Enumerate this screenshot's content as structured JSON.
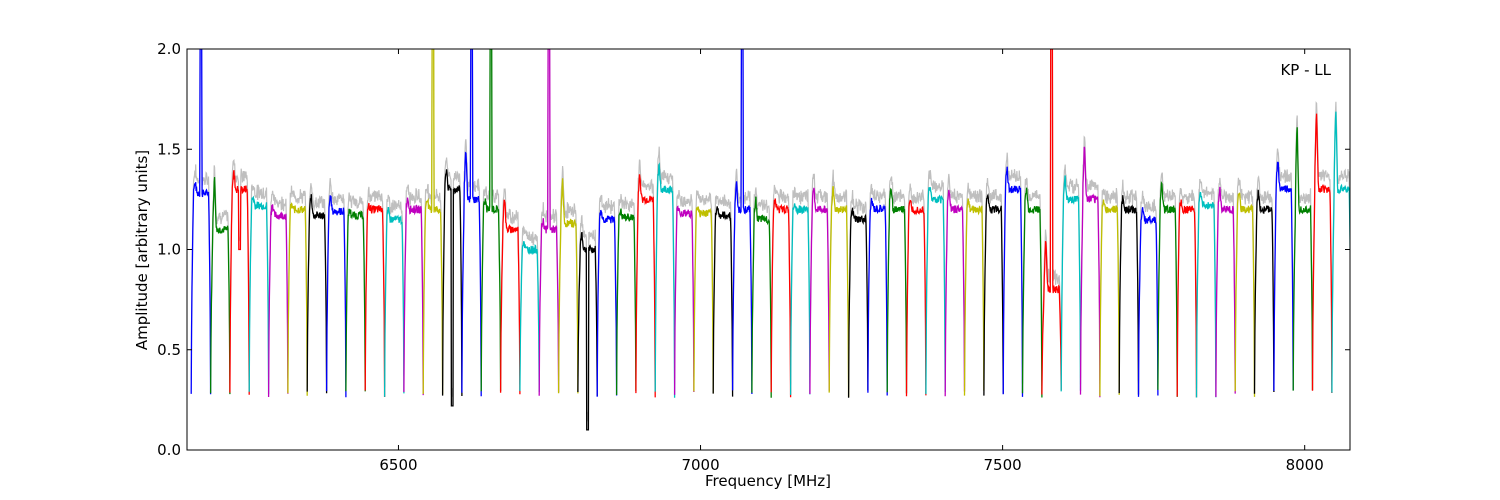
{
  "chart_data": {
    "type": "line",
    "title": "",
    "xlabel": "Frequency [MHz]",
    "ylabel": "Amplitude [arbitrary units]",
    "annotation": "KP - LL",
    "xlim": [
      6150,
      8075
    ],
    "ylim": [
      0.0,
      2.0
    ],
    "xticks": [
      6500,
      7000,
      7500,
      8000
    ],
    "xtick_labels": [
      "6500",
      "7000",
      "7500",
      "8000"
    ],
    "yticks": [
      0.0,
      0.5,
      1.0,
      1.5,
      2.0
    ],
    "ytick_labels": [
      "0.0",
      "0.5",
      "1.0",
      "1.5",
      "2.0"
    ],
    "grid": false,
    "legend": "none",
    "background_series": {
      "name": "",
      "color": "#bfbfbf"
    },
    "color_cycle": [
      "#0000ff",
      "#008000",
      "#ff0000",
      "#00bfbf",
      "#bf00bf",
      "#bfbf00",
      "#000000"
    ],
    "channel_width_mhz": 32,
    "channels": [
      {
        "x0": 6157,
        "level": 1.28,
        "edge": 1.34,
        "rfi": 2.0
      },
      {
        "x0": 6189,
        "level": 1.1,
        "edge": 1.4,
        "rfi": null
      },
      {
        "x0": 6221,
        "level": 1.3,
        "edge": 1.4,
        "rfi": 1.0
      },
      {
        "x0": 6253,
        "level": 1.22,
        "edge": 1.27,
        "rfi": null
      },
      {
        "x0": 6285,
        "level": 1.17,
        "edge": 1.24,
        "rfi": null
      },
      {
        "x0": 6317,
        "level": 1.2,
        "edge": 1.22,
        "rfi": null
      },
      {
        "x0": 6349,
        "level": 1.17,
        "edge": 1.29,
        "rfi": null
      },
      {
        "x0": 6381,
        "level": 1.19,
        "edge": 1.28,
        "rfi": null
      },
      {
        "x0": 6413,
        "level": 1.17,
        "edge": 1.2,
        "rfi": null
      },
      {
        "x0": 6445,
        "level": 1.2,
        "edge": 1.22,
        "rfi": null
      },
      {
        "x0": 6477,
        "level": 1.15,
        "edge": 1.2,
        "rfi": null
      },
      {
        "x0": 6509,
        "level": 1.2,
        "edge": 1.27,
        "rfi": null
      },
      {
        "x0": 6541,
        "level": 1.2,
        "edge": 1.27,
        "rfi": 2.0
      },
      {
        "x0": 6573,
        "level": 1.3,
        "edge": 1.42,
        "rfi": 0.22
      },
      {
        "x0": 6605,
        "level": 1.25,
        "edge": 1.53,
        "rfi": 2.0
      },
      {
        "x0": 6637,
        "level": 1.2,
        "edge": 1.25,
        "rfi": 2.0
      },
      {
        "x0": 6669,
        "level": 1.1,
        "edge": 1.29,
        "rfi": null
      },
      {
        "x0": 6701,
        "level": 1.0,
        "edge": 1.05,
        "rfi": null
      },
      {
        "x0": 6733,
        "level": 1.1,
        "edge": 1.15,
        "rfi": 2.0
      },
      {
        "x0": 6765,
        "level": 1.13,
        "edge": 1.38,
        "rfi": null
      },
      {
        "x0": 6797,
        "level": 1.0,
        "edge": 1.1,
        "rfi": 0.1
      },
      {
        "x0": 6829,
        "level": 1.15,
        "edge": 1.2,
        "rfi": null
      },
      {
        "x0": 6861,
        "level": 1.16,
        "edge": 1.2,
        "rfi": null
      },
      {
        "x0": 6893,
        "level": 1.25,
        "edge": 1.4,
        "rfi": null
      },
      {
        "x0": 6925,
        "level": 1.3,
        "edge": 1.43,
        "rfi": null
      },
      {
        "x0": 6957,
        "level": 1.18,
        "edge": 1.22,
        "rfi": null
      },
      {
        "x0": 6989,
        "level": 1.18,
        "edge": 1.22,
        "rfi": null
      },
      {
        "x0": 7021,
        "level": 1.17,
        "edge": 1.22,
        "rfi": null
      },
      {
        "x0": 7053,
        "level": 1.2,
        "edge": 1.35,
        "rfi": 2.0
      },
      {
        "x0": 7085,
        "level": 1.15,
        "edge": 1.27,
        "rfi": null
      },
      {
        "x0": 7117,
        "level": 1.2,
        "edge": 1.25,
        "rfi": null
      },
      {
        "x0": 7149,
        "level": 1.2,
        "edge": 1.24,
        "rfi": null
      },
      {
        "x0": 7181,
        "level": 1.2,
        "edge": 1.32,
        "rfi": null
      },
      {
        "x0": 7213,
        "level": 1.2,
        "edge": 1.32,
        "rfi": null
      },
      {
        "x0": 7245,
        "level": 1.15,
        "edge": 1.2,
        "rfi": null
      },
      {
        "x0": 7277,
        "level": 1.2,
        "edge": 1.25,
        "rfi": null
      },
      {
        "x0": 7309,
        "level": 1.2,
        "edge": 1.33,
        "rfi": null
      },
      {
        "x0": 7341,
        "level": 1.2,
        "edge": 1.24,
        "rfi": null
      },
      {
        "x0": 7373,
        "level": 1.25,
        "edge": 1.33,
        "rfi": null
      },
      {
        "x0": 7405,
        "level": 1.2,
        "edge": 1.32,
        "rfi": null
      },
      {
        "x0": 7437,
        "level": 1.2,
        "edge": 1.25,
        "rfi": null
      },
      {
        "x0": 7469,
        "level": 1.2,
        "edge": 1.3,
        "rfi": null
      },
      {
        "x0": 7501,
        "level": 1.3,
        "edge": 1.42,
        "rfi": null
      },
      {
        "x0": 7533,
        "level": 1.2,
        "edge": 1.32,
        "rfi": null
      },
      {
        "x0": 7565,
        "level": 0.8,
        "edge": 1.1,
        "rfi": 2.0
      },
      {
        "x0": 7597,
        "level": 1.25,
        "edge": 1.38,
        "rfi": null
      },
      {
        "x0": 7629,
        "level": 1.25,
        "edge": 1.56,
        "rfi": null
      },
      {
        "x0": 7661,
        "level": 1.2,
        "edge": 1.25,
        "rfi": null
      },
      {
        "x0": 7693,
        "level": 1.2,
        "edge": 1.27,
        "rfi": null
      },
      {
        "x0": 7725,
        "level": 1.15,
        "edge": 1.2,
        "rfi": null
      },
      {
        "x0": 7757,
        "level": 1.2,
        "edge": 1.35,
        "rfi": null
      },
      {
        "x0": 7789,
        "level": 1.2,
        "edge": 1.25,
        "rfi": null
      },
      {
        "x0": 7821,
        "level": 1.22,
        "edge": 1.3,
        "rfi": null
      },
      {
        "x0": 7853,
        "level": 1.2,
        "edge": 1.32,
        "rfi": null
      },
      {
        "x0": 7885,
        "level": 1.2,
        "edge": 1.3,
        "rfi": null
      },
      {
        "x0": 7917,
        "level": 1.2,
        "edge": 1.3,
        "rfi": null
      },
      {
        "x0": 7949,
        "level": 1.3,
        "edge": 1.48,
        "rfi": null
      },
      {
        "x0": 7981,
        "level": 1.2,
        "edge": 1.7,
        "rfi": null
      },
      {
        "x0": 8013,
        "level": 1.3,
        "edge": 1.75,
        "rfi": null
      },
      {
        "x0": 8045,
        "level": 1.3,
        "edge": 1.75,
        "rfi": null
      }
    ]
  }
}
